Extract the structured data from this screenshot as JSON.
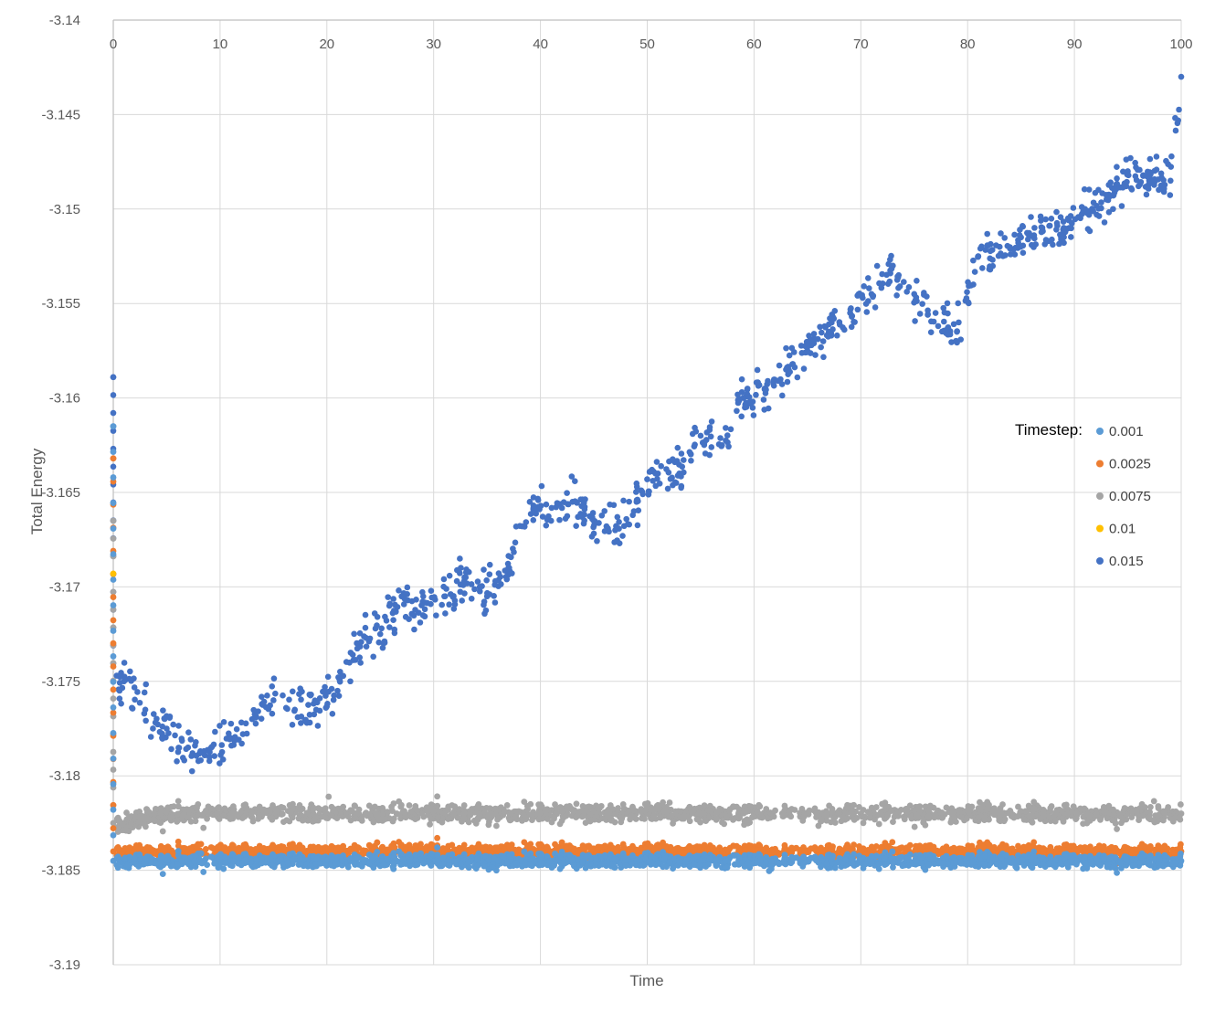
{
  "chart_data": {
    "type": "scatter",
    "title": "",
    "xlabel": "Time",
    "ylabel": "Total Energy",
    "xlim": [
      0,
      100
    ],
    "ylim": [
      -3.19,
      -3.14
    ],
    "x_ticks": [
      0,
      10,
      20,
      30,
      40,
      50,
      60,
      70,
      80,
      90,
      100
    ],
    "y_ticks": [
      -3.14,
      -3.145,
      -3.15,
      -3.155,
      -3.16,
      -3.165,
      -3.17,
      -3.175,
      -3.18,
      -3.185,
      -3.19
    ],
    "x_tick_labels": [
      "0",
      "10",
      "20",
      "30",
      "40",
      "50",
      "60",
      "70",
      "80",
      "90",
      "100"
    ],
    "y_tick_labels": [
      "-3.14",
      "-3.145",
      "-3.15",
      "-3.155",
      "-3.16",
      "-3.165",
      "-3.17",
      "-3.175",
      "-3.18",
      "-3.185",
      "-3.19"
    ],
    "x_axis_position": "top",
    "grid": true,
    "legend": {
      "title": "Timestep:",
      "position": "right"
    },
    "series": [
      {
        "name": "0.015",
        "color": "#4472C4",
        "x": [
          0,
          1,
          3,
          5,
          7,
          9,
          11,
          13,
          15,
          17,
          19,
          21,
          23,
          25,
          27,
          29,
          31,
          33,
          35,
          37,
          39,
          41,
          43,
          45,
          47,
          49,
          51,
          53,
          55,
          57,
          59,
          61,
          63,
          65,
          67,
          69,
          71,
          73,
          75,
          77,
          79,
          81,
          83,
          85,
          87,
          89,
          91,
          93,
          95,
          97,
          99,
          100
        ],
        "y": [
          -3.1589,
          -3.175,
          -3.1765,
          -3.1775,
          -3.1785,
          -3.179,
          -3.178,
          -3.177,
          -3.176,
          -3.1765,
          -3.1765,
          -3.1755,
          -3.173,
          -3.1725,
          -3.1705,
          -3.1715,
          -3.1705,
          -3.1695,
          -3.1705,
          -3.169,
          -3.1655,
          -3.1665,
          -3.1655,
          -3.1665,
          -3.167,
          -3.1655,
          -3.164,
          -3.164,
          -3.162,
          -3.1625,
          -3.16,
          -3.1595,
          -3.1585,
          -3.1575,
          -3.1565,
          -3.1555,
          -3.1545,
          -3.153,
          -3.1545,
          -3.1555,
          -3.1565,
          -3.1525,
          -3.152,
          -3.1515,
          -3.151,
          -3.151,
          -3.15,
          -3.1495,
          -3.148,
          -3.1485,
          -3.1485,
          -3.143
        ]
      },
      {
        "name": "0.0075",
        "color": "#A5A5A5",
        "x": [
          0,
          1,
          5,
          10,
          20,
          30,
          40,
          50,
          60,
          70,
          80,
          90,
          100
        ],
        "y": [
          -3.1665,
          -3.1825,
          -3.182,
          -3.182,
          -3.182,
          -3.182,
          -3.182,
          -3.182,
          -3.182,
          -3.182,
          -3.182,
          -3.182,
          -3.182
        ]
      },
      {
        "name": "0.0025",
        "color": "#ED7D31",
        "x": [
          0,
          1,
          5,
          10,
          20,
          30,
          40,
          50,
          60,
          70,
          80,
          90,
          100
        ],
        "y": [
          -3.1632,
          -3.184,
          -3.184,
          -3.184,
          -3.184,
          -3.184,
          -3.184,
          -3.184,
          -3.184,
          -3.184,
          -3.184,
          -3.184,
          -3.184
        ]
      },
      {
        "name": "0.001",
        "color": "#5B9BD5",
        "x": [
          0,
          1,
          5,
          10,
          20,
          30,
          40,
          50,
          60,
          70,
          80,
          90,
          100
        ],
        "y": [
          -3.1615,
          -3.1845,
          -3.1845,
          -3.1845,
          -3.1845,
          -3.1845,
          -3.1845,
          -3.1845,
          -3.1845,
          -3.1845,
          -3.1845,
          -3.1845,
          -3.1845
        ]
      },
      {
        "name": "0.01",
        "color": "#FFC000",
        "x": [
          0
        ],
        "y": [
          -3.1693
        ]
      }
    ],
    "legend_order": [
      "0.001",
      "0.0025",
      "0.0075",
      "0.01",
      "0.015"
    ]
  }
}
